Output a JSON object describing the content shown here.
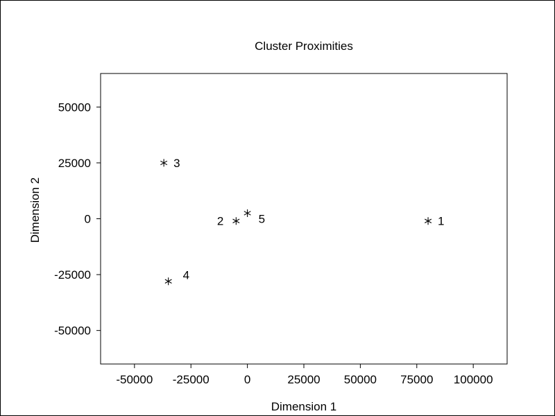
{
  "chart_data": {
    "type": "scatter",
    "title": "Cluster Proximities",
    "xlabel": "Dimension 1",
    "ylabel": "Dimension 2",
    "xlim": [
      -65000,
      115000
    ],
    "ylim": [
      -65000,
      65000
    ],
    "xticks": [
      -50000,
      -25000,
      0,
      25000,
      50000,
      75000,
      100000
    ],
    "yticks": [
      -50000,
      -25000,
      0,
      25000,
      50000
    ],
    "marker": "asterisk",
    "grid": false,
    "points": [
      {
        "label": "1",
        "x": 80000,
        "y": -1000,
        "label_side": "right"
      },
      {
        "label": "2",
        "x": -5000,
        "y": -1000,
        "label_side": "left"
      },
      {
        "label": "3",
        "x": -37000,
        "y": 25000,
        "label_side": "right"
      },
      {
        "label": "4",
        "x": -35000,
        "y": -28000,
        "label_side": "upper-right"
      },
      {
        "label": "5",
        "x": 0,
        "y": 2500,
        "label_side": "lower-right"
      }
    ]
  }
}
